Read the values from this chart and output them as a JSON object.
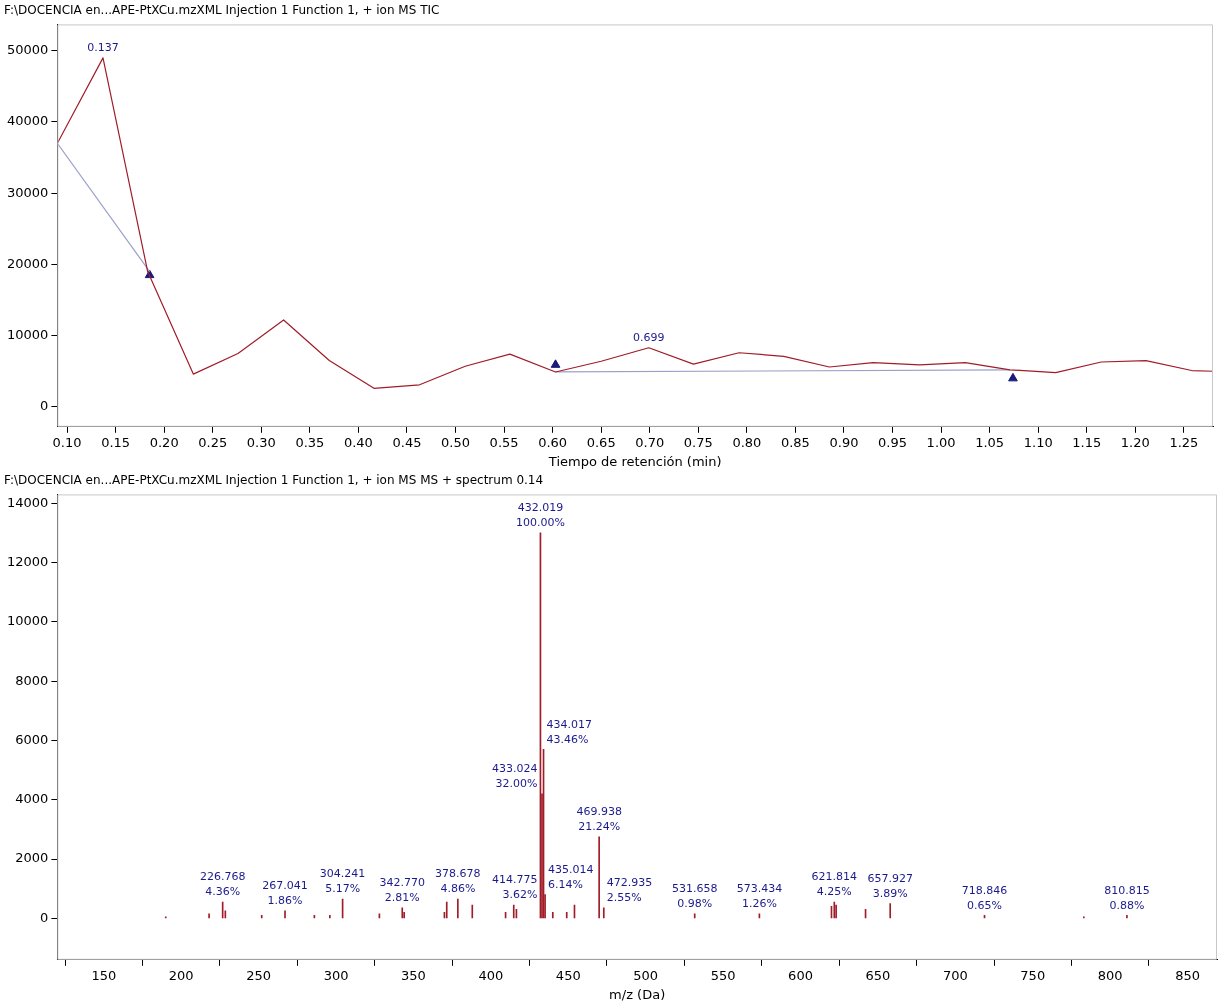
{
  "chart_data": [
    {
      "type": "line",
      "title": "F:\\DOCENCIA en...APE-PtXCu.mzXML Injection 1 Function 1, + ion MS TIC",
      "xlabel": "Tiempo de retención (min)",
      "xlim": [
        0.09,
        1.28
      ],
      "xticks": [
        {
          "value": 0.1,
          "label": "0.10"
        },
        0.15,
        {
          "value": 0.2,
          "label": "0.20"
        },
        0.25,
        {
          "value": 0.3,
          "label": "0.30"
        },
        0.35,
        {
          "value": 0.4,
          "label": "0.40"
        },
        0.45,
        {
          "value": 0.5,
          "label": "0.50"
        },
        0.55,
        {
          "value": 0.6,
          "label": "0.60"
        },
        0.65,
        {
          "value": 0.7,
          "label": "0.70"
        },
        0.75,
        {
          "value": 0.8,
          "label": "0.80"
        },
        0.85,
        {
          "value": 0.9,
          "label": "0.90"
        },
        0.95,
        {
          "value": 1,
          "label": "1.00"
        },
        1.05,
        {
          "value": 1.1,
          "label": "1.10"
        },
        1.15,
        {
          "value": 1.2,
          "label": "1.20"
        },
        1.25
      ],
      "ylim": [
        -2800,
        53700
      ],
      "yticks": [
        0,
        10000,
        20000,
        30000,
        40000,
        50000
      ],
      "grid": false,
      "legend": false,
      "marker": "none",
      "series": [
        {
          "color": "#a01c28",
          "x": [
            0.09,
            0.137,
            0.183,
            0.23,
            0.276,
            0.323,
            0.37,
            0.416,
            0.463,
            0.51,
            0.556,
            0.603,
            0.65,
            0.699,
            0.745,
            0.792,
            0.838,
            0.885,
            0.93,
            0.978,
            1.025,
            1.071,
            1.118,
            1.165,
            1.211,
            1.258,
            1.28
          ],
          "values": [
            37000,
            49000,
            19000,
            4600,
            7500,
            12200,
            6500,
            2600,
            3100,
            5700,
            7400,
            4900,
            6400,
            8300,
            6000,
            7600,
            7100,
            5600,
            6200,
            5900,
            6200,
            5200,
            4800,
            6300,
            6500,
            5100,
            5000
          ]
        },
        {
          "type": "line",
          "color": "#9aa0c8",
          "x": [
            0.09,
            0.185
          ],
          "values": [
            37000,
            19000
          ]
        },
        {
          "type": "line",
          "color": "#9aa0c8",
          "x": [
            0.603,
            1.071
          ],
          "values": [
            4900,
            5200
          ]
        },
        {
          "type": "scatter",
          "color": "#1a1a7a",
          "marker": "triangle",
          "x": [
            0.185,
            0.603,
            1.074
          ],
          "values": [
            18500,
            5900,
            4000
          ]
        }
      ],
      "annotations": [
        {
          "text": "0.137",
          "x": 0.137,
          "y": 49000
        },
        {
          "text": "0.699",
          "x": 0.699,
          "y": 8300
        }
      ]
    },
    {
      "type": "bar",
      "title": "F:\\DOCENCIA en...APE-PtXCu.mzXML Injection 1 Function 1, + ion MS MS + spectrum 0.14",
      "xlabel": "m/z (Da)",
      "xlim": [
        120,
        869
      ],
      "xticks": [
        150,
        200,
        250,
        300,
        350,
        400,
        450,
        500,
        550,
        600,
        650,
        700,
        750,
        800,
        850
      ],
      "ylim": [
        -1400,
        14300
      ],
      "yticks": [
        0,
        2000,
        4000,
        6000,
        8000,
        10000,
        12000,
        14000
      ],
      "grid": false,
      "legend": false,
      "series": [
        {
          "color": "#a01c28",
          "x": [
            190,
            218,
            226.768,
            228.5,
            252,
            267.041,
            286,
            296,
            304.241,
            328,
            342.77,
            344,
            370,
            371.5,
            378.678,
            388,
            409.5,
            414.775,
            416.5,
            432.019,
            433.024,
            434.017,
            435.014,
            440,
            449,
            454,
            469.938,
            472.935,
            531.658,
            573.434,
            620,
            621.814,
            623,
            642,
            657.927,
            718.846,
            783,
            810.815
          ],
          "values": [
            50,
            150,
            550,
            250,
            100,
            250,
            100,
            100,
            650,
            150,
            350,
            200,
            200,
            550,
            650,
            450,
            200,
            450,
            300,
            13000,
            4200,
            5700,
            800,
            200,
            200,
            450,
            2750,
            350,
            150,
            150,
            400,
            550,
            450,
            300,
            500,
            100,
            50,
            100
          ]
        }
      ],
      "annotations": [
        {
          "text": "226.768\n4.36%",
          "x": 226.768,
          "y": 550
        },
        {
          "text": "267.041\n1.86%",
          "x": 267.041,
          "y": 250
        },
        {
          "text": "304.241\n5.17%",
          "x": 304.241,
          "y": 650
        },
        {
          "text": "342.770\n2.81%",
          "x": 342.77,
          "y": 350
        },
        {
          "text": "378.678\n4.86%",
          "x": 378.678,
          "y": 650
        },
        {
          "text": "414.775\n3.62%",
          "x": 414.775,
          "y": 450
        },
        {
          "text": "432.019\n100.00%",
          "x": 432.019,
          "y": 13000
        },
        {
          "text": "433.024\n32.00%",
          "x": 433.024,
          "y": 4200
        },
        {
          "text": "434.017\n43.46%",
          "x": 434.017,
          "y": 5700
        },
        {
          "text": "435.014\n6.14%",
          "x": 435.014,
          "y": 800
        },
        {
          "text": "469.938\n21.24%",
          "x": 469.938,
          "y": 2750
        },
        {
          "text": "472.935\n2.55%",
          "x": 472.935,
          "y": 350
        },
        {
          "text": "531.658\n0.98%",
          "x": 531.658,
          "y": 150
        },
        {
          "text": "573.434\n1.26%",
          "x": 573.434,
          "y": 150
        },
        {
          "text": "621.814\n4.25%",
          "x": 621.814,
          "y": 550
        },
        {
          "text": "657.927\n3.89%",
          "x": 657.927,
          "y": 500
        },
        {
          "text": "718.846\n0.65%",
          "x": 718.846,
          "y": 100
        },
        {
          "text": "810.815\n0.88%",
          "x": 810.815,
          "y": 100
        }
      ]
    }
  ]
}
